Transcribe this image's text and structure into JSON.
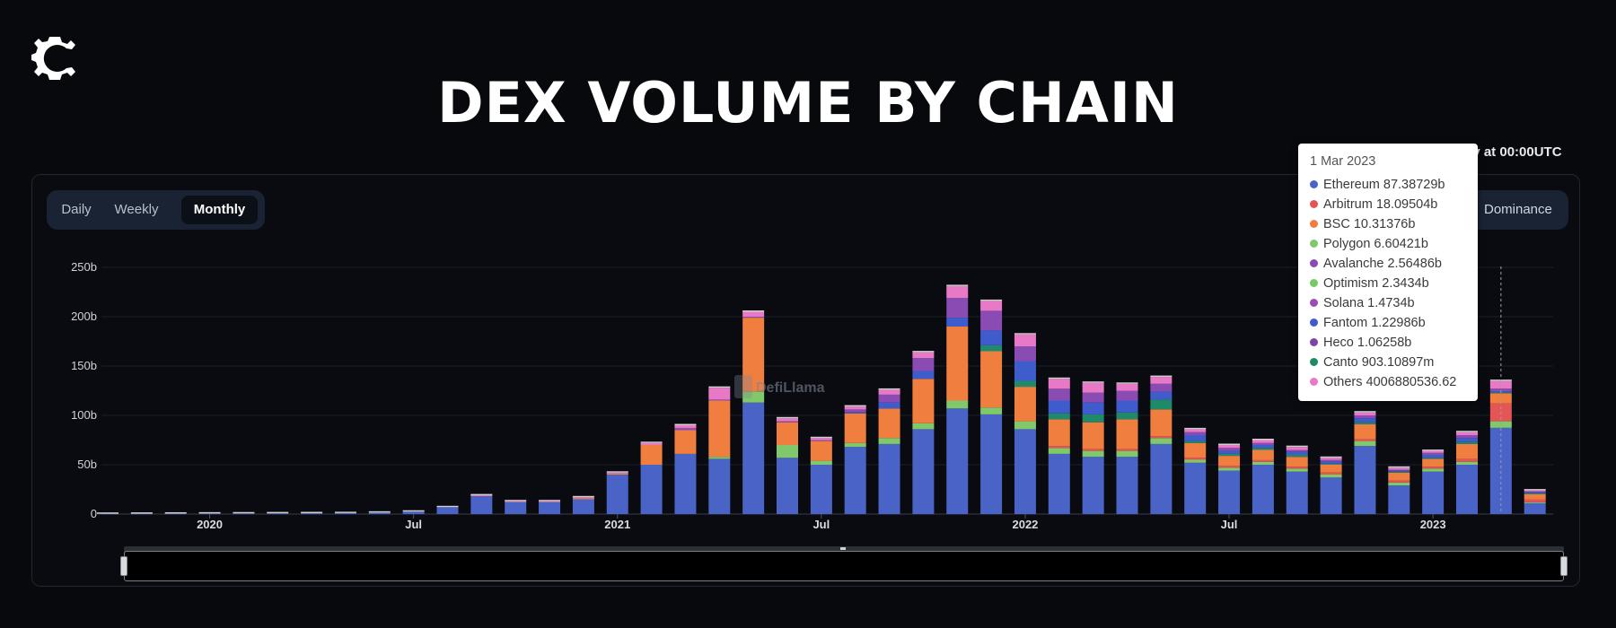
{
  "page": {
    "title": "DEX VOLUME BY CHAIN",
    "logo_icon": "coin-c-logo"
  },
  "controls": {
    "periods": [
      {
        "label": "Daily",
        "active": false
      },
      {
        "label": "Weekly",
        "active": false
      },
      {
        "label": "Monthly",
        "active": true
      }
    ],
    "dominance_label": "Dominance",
    "update_note": "ily at 00:00UTC"
  },
  "watermark": "DefiLlama",
  "colors": {
    "Ethereum": "#4a63c6",
    "Arbitrum": "#e45656",
    "BSC": "#f07e3e",
    "Polygon": "#7fc96a",
    "Avalanche": "#8a4bb3",
    "Optimism": "#78c964",
    "Solana": "#9a4db6",
    "Fantom": "#3f5ccc",
    "Heco": "#7d45a6",
    "Canto": "#1f8a6a",
    "Others": "#e879c6",
    "Extra": "#8a8a8a"
  },
  "tooltip": {
    "date": "1 Mar 2023",
    "rows": [
      {
        "name": "Ethereum",
        "value": "87.38729b"
      },
      {
        "name": "Arbitrum",
        "value": "18.09504b"
      },
      {
        "name": "BSC",
        "value": "10.31376b"
      },
      {
        "name": "Polygon",
        "value": "6.60421b"
      },
      {
        "name": "Avalanche",
        "value": "2.56486b"
      },
      {
        "name": "Optimism",
        "value": "2.3434b"
      },
      {
        "name": "Solana",
        "value": "1.4734b"
      },
      {
        "name": "Fantom",
        "value": "1.22986b"
      },
      {
        "name": "Heco",
        "value": "1.06258b"
      },
      {
        "name": "Canto",
        "value": "903.10897m"
      },
      {
        "name": "Others",
        "value": "4006880536.62"
      }
    ]
  },
  "chart_data": {
    "type": "bar",
    "stacked": true,
    "ylim": [
      0,
      250
    ],
    "yticks": [
      {
        "value": 0,
        "label": "0"
      },
      {
        "value": 50,
        "label": "50b"
      },
      {
        "value": 100,
        "label": "100b"
      },
      {
        "value": 150,
        "label": "150b"
      },
      {
        "value": 200,
        "label": "200b"
      },
      {
        "value": 250,
        "label": "250b"
      }
    ],
    "xticks": [
      {
        "label": "2020",
        "month_index": 3
      },
      {
        "label": "Jul",
        "month_index": 9
      },
      {
        "label": "2021",
        "month_index": 15
      },
      {
        "label": "Jul",
        "month_index": 21
      },
      {
        "label": "2022",
        "month_index": 27
      },
      {
        "label": "Jul",
        "month_index": 33
      },
      {
        "label": "2023",
        "month_index": 39
      }
    ],
    "grid": true,
    "series_order": [
      "Ethereum",
      "Polygon",
      "Arbitrum",
      "BSC",
      "Canto",
      "Fantom",
      "Avalanche",
      "Others"
    ],
    "categories": [
      "Oct 2019",
      "Nov 2019",
      "Dec 2019",
      "Jan 2020",
      "Feb 2020",
      "Mar 2020",
      "Apr 2020",
      "May 2020",
      "Jun 2020",
      "Jul 2020",
      "Aug 2020",
      "Sep 2020",
      "Oct 2020",
      "Nov 2020",
      "Dec 2020",
      "Jan 2021",
      "Feb 2021",
      "Mar 2021",
      "Apr 2021",
      "May 2021",
      "Jun 2021",
      "Jul 2021",
      "Aug 2021",
      "Sep 2021",
      "Oct 2021",
      "Nov 2021",
      "Dec 2021",
      "Jan 2022",
      "Feb 2022",
      "Mar 2022",
      "Apr 2022",
      "May 2022",
      "Jun 2022",
      "Jul 2022",
      "Aug 2022",
      "Sep 2022",
      "Oct 2022",
      "Nov 2022",
      "Dec 2022",
      "Jan 2023",
      "Feb 2023",
      "Mar 2023",
      "Apr 2023"
    ],
    "series": [
      {
        "name": "Ethereum",
        "values": [
          0.3,
          0.4,
          0.5,
          0.6,
          0.7,
          0.8,
          0.9,
          1,
          1.5,
          2.5,
          7,
          18,
          12,
          12,
          15,
          40,
          50,
          61,
          56,
          113,
          57,
          50,
          68,
          71,
          86,
          107,
          101,
          86,
          61,
          58,
          58,
          71,
          52,
          44,
          50,
          43,
          37,
          69,
          29,
          43,
          50,
          87.4,
          11
        ]
      },
      {
        "name": "Polygon",
        "values": [
          0,
          0,
          0,
          0,
          0,
          0,
          0,
          0,
          0,
          0,
          0,
          0,
          0,
          0,
          0,
          0,
          0,
          0,
          2,
          11,
          13,
          4,
          4,
          6,
          6,
          8,
          7,
          8,
          6,
          6,
          6,
          6,
          3,
          3,
          3,
          3,
          3,
          5,
          3,
          3,
          3,
          6.6,
          1
        ]
      },
      {
        "name": "Arbitrum",
        "values": [
          0,
          0,
          0,
          0,
          0,
          0,
          0,
          0,
          0,
          0,
          0,
          0,
          0,
          0,
          0,
          0,
          0,
          0,
          0,
          0,
          0,
          0,
          0,
          0,
          0,
          0,
          0,
          0,
          2,
          2,
          2,
          2,
          2,
          2,
          2,
          2,
          2,
          2,
          2,
          2,
          3,
          18.1,
          3
        ]
      },
      {
        "name": "BSC",
        "values": [
          0,
          0,
          0,
          0,
          0,
          0,
          0,
          0,
          0,
          0,
          0,
          0,
          0,
          0,
          1,
          1,
          20,
          24,
          57,
          75,
          23,
          20,
          30,
          30,
          45,
          75,
          57,
          35,
          27,
          27,
          30,
          27,
          15,
          10,
          10,
          10,
          8,
          15,
          8,
          8,
          15,
          10.3,
          5
        ]
      },
      {
        "name": "Canto",
        "values": [
          0,
          0,
          0,
          0,
          0,
          0,
          0,
          0,
          0,
          0,
          0,
          0,
          0,
          0,
          0,
          0,
          0,
          0,
          0,
          0,
          0,
          0,
          0,
          0,
          0,
          0,
          6,
          6,
          6,
          8,
          7,
          10,
          2,
          2,
          2,
          2,
          1,
          2,
          1,
          1,
          2,
          0.9,
          1
        ]
      },
      {
        "name": "Fantom",
        "values": [
          0,
          0,
          0,
          0,
          0,
          0,
          0,
          0,
          0,
          0,
          0,
          0,
          0,
          0,
          0,
          0,
          0,
          0,
          0,
          0,
          0,
          0,
          1,
          6,
          8,
          9,
          15,
          20,
          13,
          12,
          12,
          8,
          6,
          3,
          3,
          3,
          2,
          4,
          1,
          3,
          4,
          1.2,
          1
        ]
      },
      {
        "name": "Avalanche",
        "values": [
          0,
          0,
          0,
          0,
          0,
          0,
          0,
          0,
          0,
          0,
          0,
          0,
          0,
          0,
          0,
          0,
          0,
          2,
          1,
          1,
          1,
          1,
          3,
          8,
          13,
          20,
          20,
          15,
          12,
          10,
          10,
          8,
          3,
          3,
          2,
          2,
          2,
          3,
          1,
          2,
          3,
          2.6,
          1
        ]
      },
      {
        "name": "Others",
        "values": [
          0,
          0,
          0,
          0,
          0,
          0,
          0,
          0,
          0,
          0,
          0,
          1,
          1,
          1,
          1,
          1,
          2,
          3,
          12,
          5,
          3,
          2,
          3,
          5,
          6,
          12,
          10,
          12,
          10,
          10,
          7,
          7,
          3,
          3,
          3,
          3,
          2,
          3,
          2,
          2,
          3,
          7.8,
          1
        ]
      }
    ],
    "highlight_category": "Mar 2023"
  }
}
